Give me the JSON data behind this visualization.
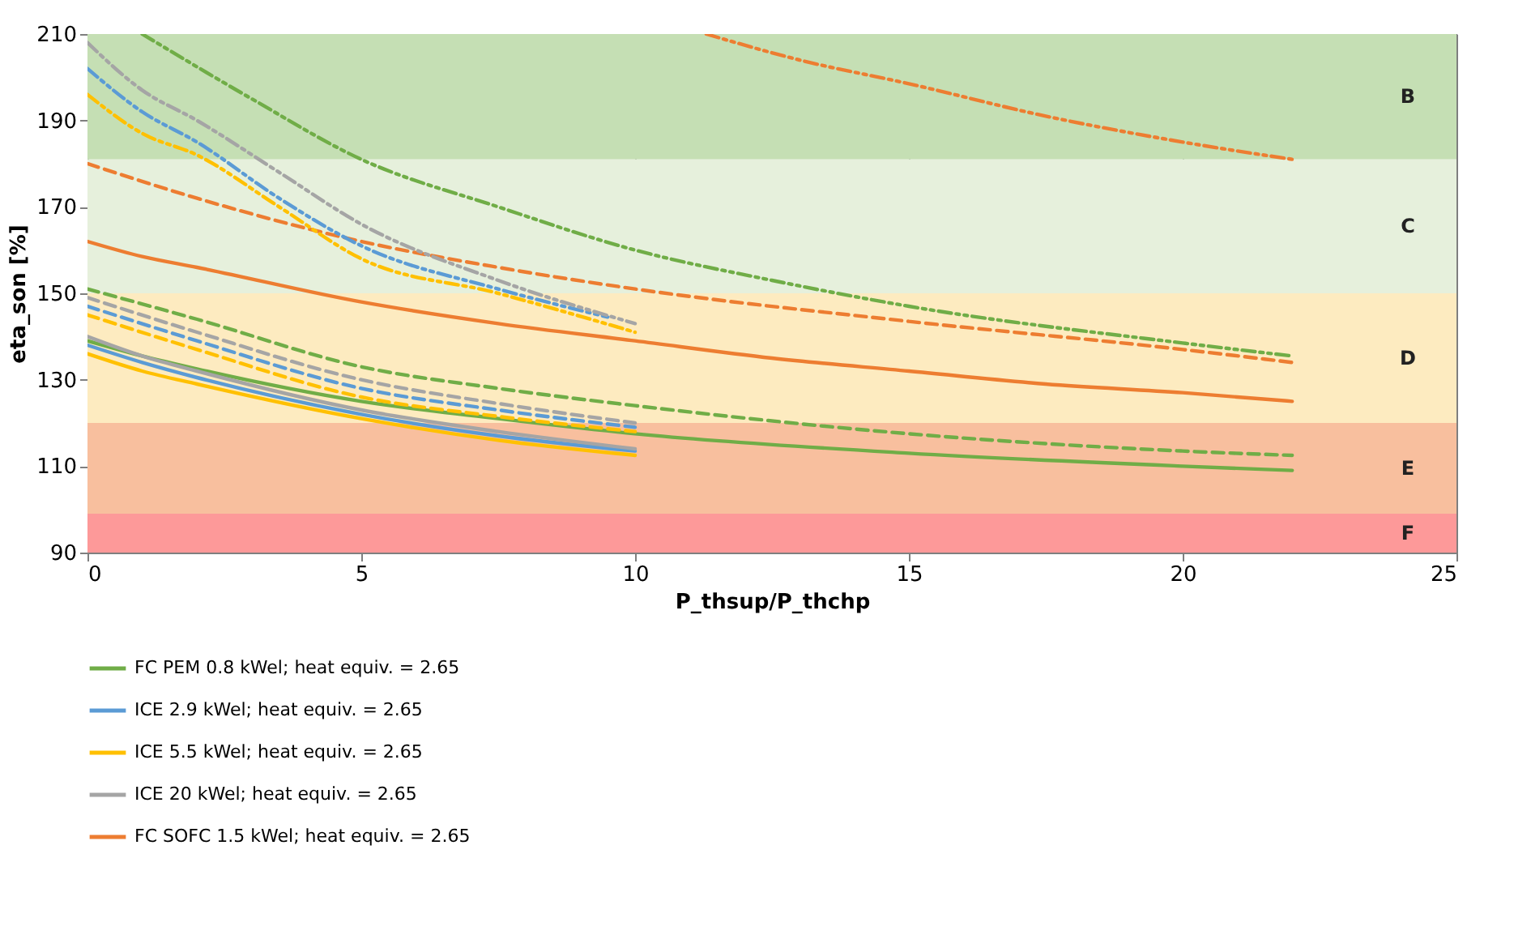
{
  "chart_data": {
    "type": "line",
    "xlabel": "P_thsup/P_thchp",
    "ylabel": "eta_son [%]",
    "xlim": [
      0,
      25
    ],
    "xticks": [
      0,
      5,
      10,
      15,
      20,
      25
    ],
    "ylim": [
      90,
      210
    ],
    "yticks": [
      90,
      110,
      130,
      150,
      170,
      190,
      210
    ],
    "grid": true,
    "legend": "bottom",
    "marker": "none",
    "bands": [
      {
        "axis": "y",
        "from": 181,
        "to": 210,
        "label": "B",
        "color": "#c5dfb4"
      },
      {
        "axis": "y",
        "from": 150,
        "to": 181,
        "label": "C",
        "color": "#e6f0dc"
      },
      {
        "axis": "y",
        "from": 120,
        "to": 150,
        "label": "D",
        "color": "#fdebc0"
      },
      {
        "axis": "y",
        "from": 99,
        "to": 120,
        "label": "E",
        "color": "#f8bf9e"
      },
      {
        "axis": "y",
        "from": 90,
        "to": 99,
        "label": "F",
        "color": "#fd9999"
      }
    ],
    "series": [
      {
        "name": "FC PEM 0.8 kWel; heat equiv. = 2.65",
        "color": "#70ad47",
        "line_style": "solid",
        "x": [
          0,
          1,
          2,
          5,
          7.5,
          10,
          15,
          20,
          22
        ],
        "values": [
          139,
          135.5,
          132.5,
          125,
          121,
          117.5,
          113,
          110,
          109
        ]
      },
      {
        "name": "ICE 2.9 kWel; heat equiv. = 2.65",
        "color": "#5b9bd5",
        "line_style": "solid",
        "x": [
          0,
          1,
          2,
          5,
          7.5,
          10
        ],
        "values": [
          138,
          134,
          130.5,
          122,
          117,
          113.5
        ]
      },
      {
        "name": "ICE 5.5 kWel; heat equiv. = 2.65",
        "color": "#ffc000",
        "line_style": "solid",
        "x": [
          0,
          1,
          2,
          5,
          7.5,
          10
        ],
        "values": [
          136,
          132,
          129,
          121,
          116,
          112.5
        ]
      },
      {
        "name": "ICE 20 kWel; heat equiv. = 2.65",
        "color": "#a5a5a5",
        "line_style": "solid",
        "x": [
          0,
          1,
          2,
          5,
          7.5,
          10
        ],
        "values": [
          140,
          135.5,
          132,
          123,
          118,
          114
        ]
      },
      {
        "name": "FC SOFC 1.5 kWel; heat equiv. = 2.65",
        "color": "#ed7d31",
        "line_style": "solid",
        "x": [
          0,
          1,
          2,
          5,
          7.5,
          10,
          12.5,
          15,
          17.5,
          20,
          22
        ],
        "values": [
          162,
          158.5,
          156,
          148,
          143,
          139,
          135,
          132,
          129,
          127,
          125
        ]
      },
      {
        "color": "#70ad47",
        "line_style": "dashed",
        "x": [
          0,
          2,
          5,
          7.5,
          10,
          15,
          20,
          22
        ],
        "values": [
          151,
          144,
          133,
          128,
          124,
          117.5,
          113.5,
          112.5
        ]
      },
      {
        "color": "#5b9bd5",
        "line_style": "dashed",
        "x": [
          0,
          2,
          5,
          7.5,
          10
        ],
        "values": [
          147,
          139,
          128,
          123,
          119
        ]
      },
      {
        "color": "#ffc000",
        "line_style": "dashed",
        "x": [
          0,
          2,
          5,
          7.5,
          10
        ],
        "values": [
          145,
          137,
          126,
          121.5,
          118
        ]
      },
      {
        "color": "#a5a5a5",
        "line_style": "dashed",
        "x": [
          0,
          2,
          5,
          7.5,
          10
        ],
        "values": [
          149,
          141,
          130,
          124.5,
          120
        ]
      },
      {
        "color": "#ed7d31",
        "line_style": "dashed",
        "x": [
          0,
          2,
          5,
          7.5,
          10,
          15,
          20,
          22
        ],
        "values": [
          180,
          172,
          162,
          156,
          151,
          143.5,
          137,
          134
        ]
      },
      {
        "color": "#70ad47",
        "line_style": "dashdot",
        "x": [
          1,
          3,
          5,
          7.5,
          10,
          12.5,
          15,
          20,
          22
        ],
        "values": [
          210,
          195,
          181,
          170,
          160,
          153,
          147,
          138.5,
          135.5
        ]
      },
      {
        "color": "#ed7d31",
        "line_style": "dashdot",
        "x": [
          11.3,
          13,
          15,
          17.5,
          20,
          22
        ],
        "values": [
          210,
          204,
          198.5,
          191,
          185,
          181
        ]
      },
      {
        "color": "#5b9bd5",
        "line_style": "dashdot",
        "x": [
          0,
          1,
          2,
          3.5,
          5,
          7.5,
          9.5
        ],
        "values": [
          202,
          192,
          185,
          172,
          161,
          151,
          144.5
        ]
      },
      {
        "color": "#a5a5a5",
        "line_style": "dashdot",
        "x": [
          0,
          1,
          2,
          3.5,
          5,
          7.5,
          10
        ],
        "values": [
          208,
          197,
          190,
          178,
          166,
          153,
          143
        ]
      },
      {
        "color": "#ffc000",
        "line_style": "dashdot",
        "x": [
          0,
          1,
          2,
          3.5,
          5,
          7.5,
          10
        ],
        "values": [
          196,
          187,
          182,
          170,
          158,
          150,
          141
        ]
      }
    ]
  }
}
